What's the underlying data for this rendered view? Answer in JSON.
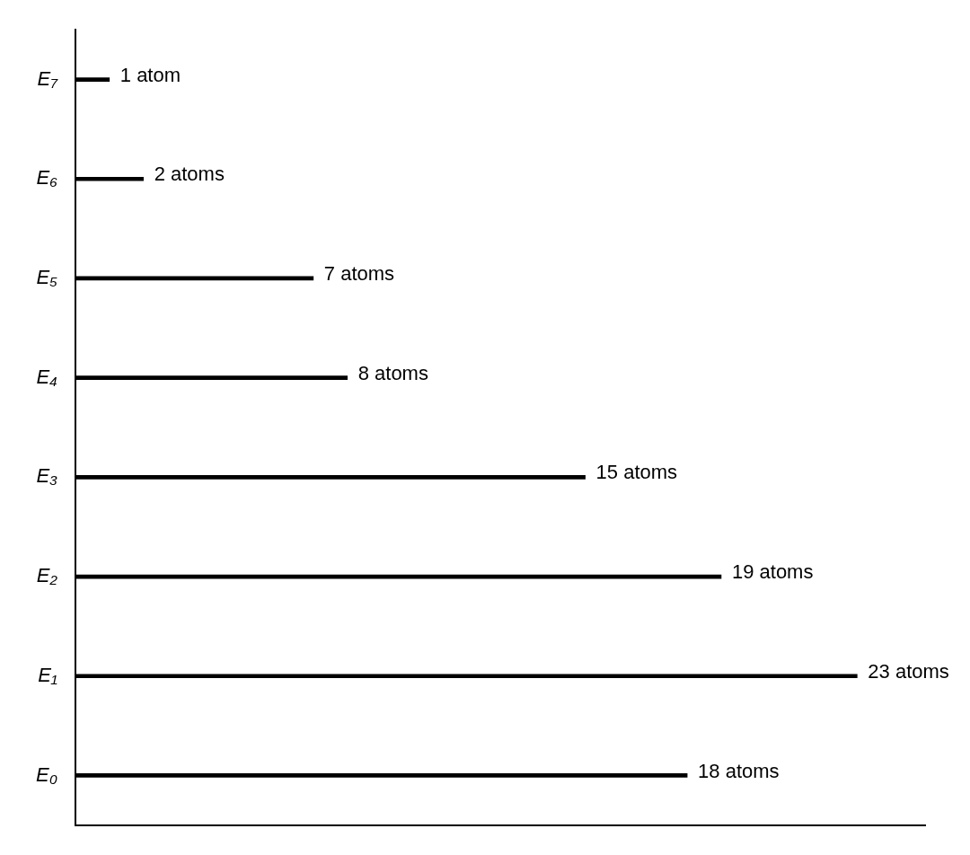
{
  "chart_data": {
    "type": "bar",
    "orientation": "horizontal",
    "categories": [
      "E₇",
      "E₆",
      "E₅",
      "E₄",
      "E₃",
      "E₂",
      "E₁",
      "E₀"
    ],
    "values": [
      1,
      2,
      7,
      8,
      15,
      19,
      23,
      18
    ],
    "value_labels": [
      "1 atom",
      "2 atoms",
      "7 atoms",
      "8 atoms",
      "15 atoms",
      "19 atoms",
      "23 atoms",
      "18 atoms"
    ],
    "color": "#000000",
    "tick_labels": "y",
    "grid": false,
    "legend": false
  }
}
